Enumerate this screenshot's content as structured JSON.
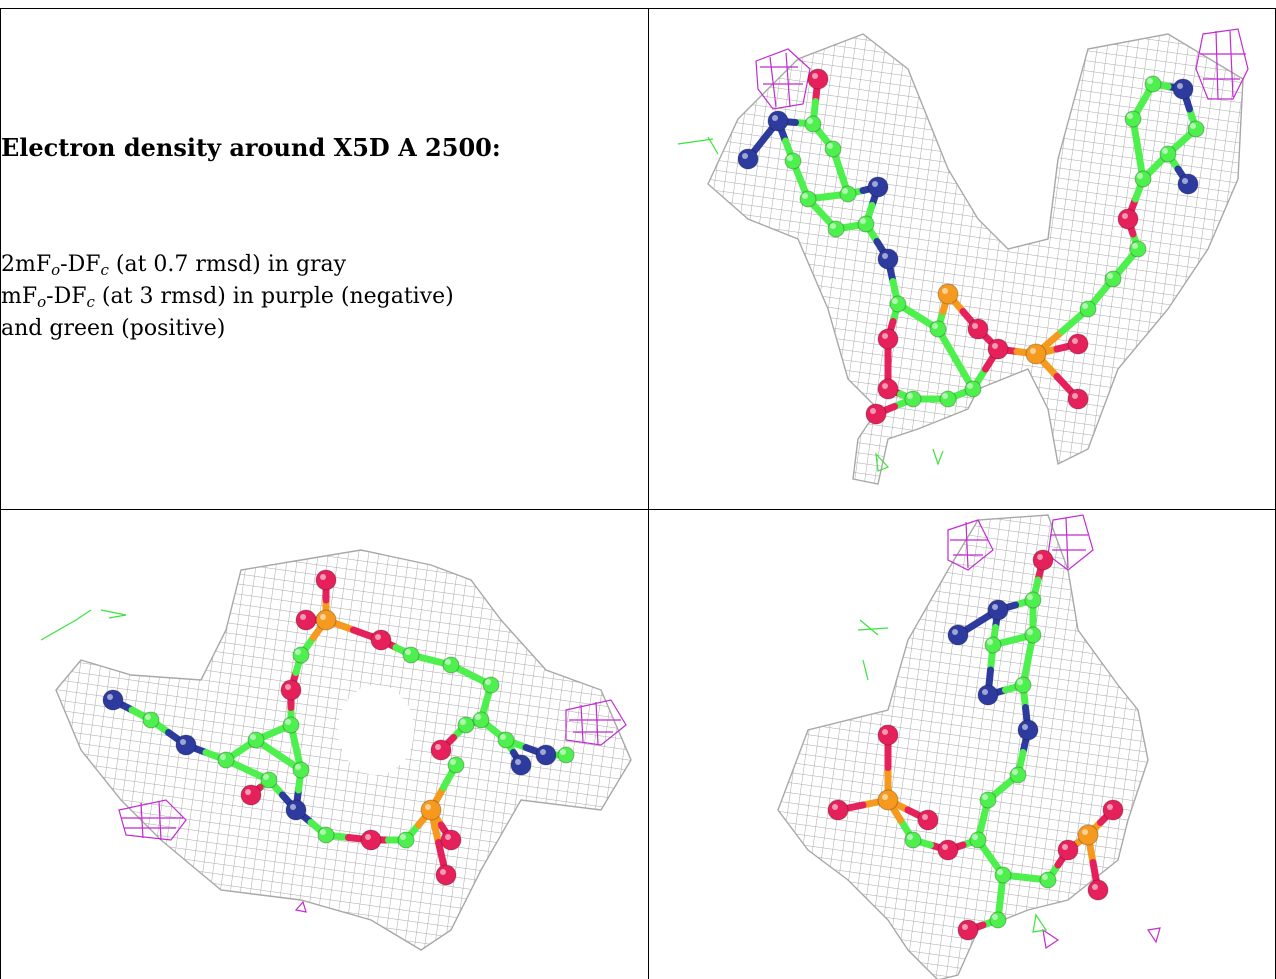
{
  "caption": {
    "title": "Electron density around X5D A 2500:",
    "line1_prefix": "2mF",
    "line1_sub1": "o",
    "line1_mid": "-DF",
    "line1_sub2": "c",
    "line1_suffix": " (at 0.7 rmsd) in gray",
    "line2_prefix": "mF",
    "line2_sub1": "o",
    "line2_mid": "-DF",
    "line2_sub2": "c",
    "line2_suffix": " (at 3 rmsd) in purple (negative)",
    "line3": "and green (positive)"
  },
  "colors": {
    "mesh_gray": "#9a9a9a",
    "mesh_negative": "#c22bd1",
    "mesh_positive": "#3ce33c",
    "carbon": "#4ef04e",
    "nitrogen": "#2d3a9e",
    "oxygen": "#e5205a",
    "phosphorus": "#f59a1e"
  },
  "panels": [
    {
      "id": "view-1",
      "icon": "density-map-view-1-icon"
    },
    {
      "id": "view-2",
      "icon": "density-map-view-2-icon"
    },
    {
      "id": "view-3",
      "icon": "density-map-view-3-icon"
    }
  ]
}
